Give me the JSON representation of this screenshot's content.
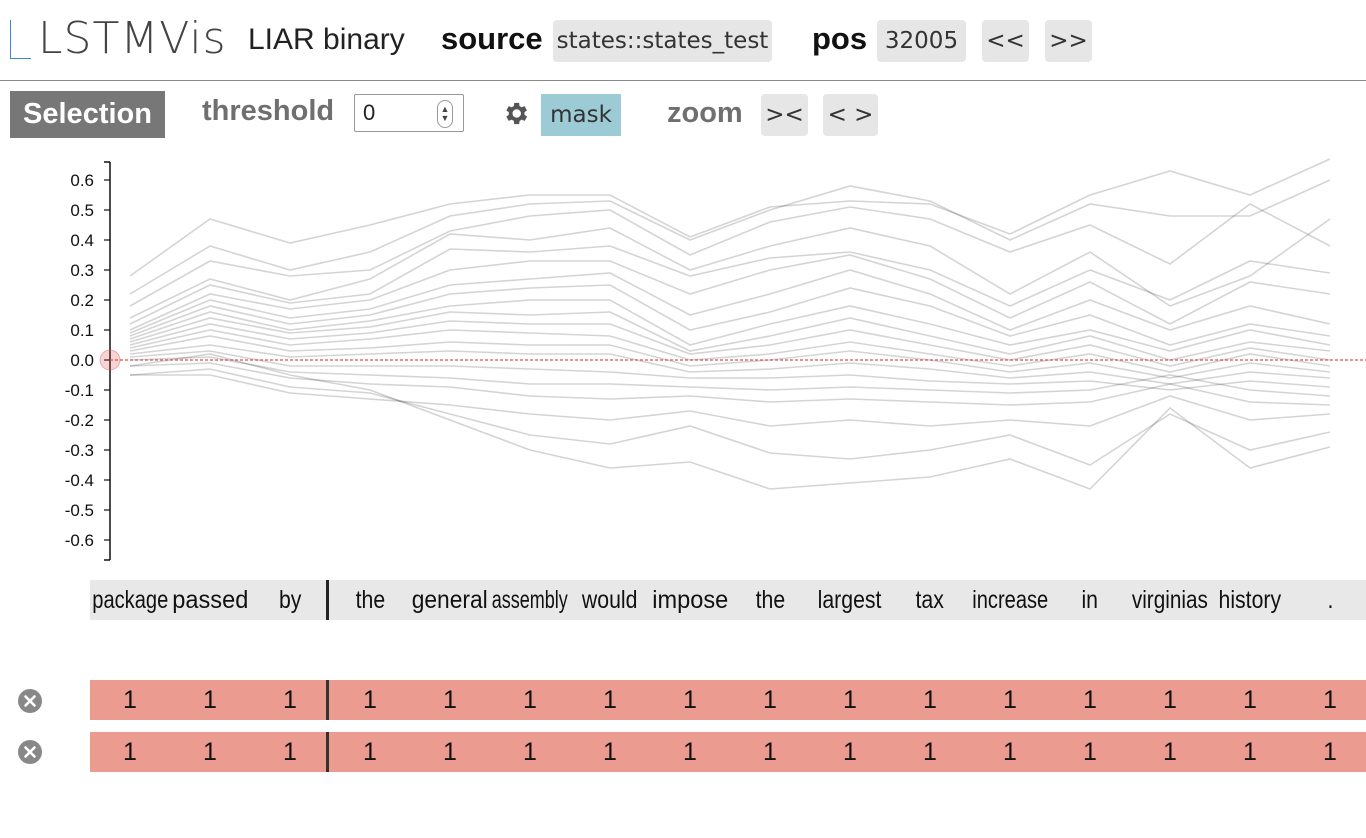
{
  "header": {
    "logo_text": "LSTMVis",
    "app_title": "LIAR binary",
    "source_label": "source",
    "source_value": "states::states_test",
    "pos_label": "pos",
    "pos_value": "32005",
    "prev_label": "<<",
    "next_label": ">>"
  },
  "toolbar": {
    "selection_label": "Selection",
    "threshold_label": "threshold",
    "threshold_value": "0",
    "settings_icon": "gear-icon",
    "mask_label": "mask",
    "zoom_label": "zoom",
    "zoom_in_label": "><",
    "zoom_out_label": "< >"
  },
  "chart_data": {
    "type": "line",
    "y_ticks": [
      "0.6",
      "0.5",
      "0.4",
      "0.3",
      "0.2",
      "0.1",
      "0.0",
      "-0.1",
      "-0.2",
      "-0.3",
      "-0.4",
      "-0.5",
      "-0.6"
    ],
    "ylim": [
      -0.6,
      0.6
    ],
    "threshold": 0.0,
    "line_color": "#000000",
    "threshold_color": "#d9534f",
    "series": [
      {
        "values": [
          0.28,
          0.47,
          0.39,
          0.45,
          0.52,
          0.55,
          0.55,
          0.41,
          0.51,
          0.53,
          0.52,
          0.42,
          0.55,
          0.63,
          0.55,
          0.67
        ]
      },
      {
        "values": [
          0.22,
          0.38,
          0.3,
          0.36,
          0.48,
          0.52,
          0.53,
          0.4,
          0.5,
          0.58,
          0.53,
          0.4,
          0.52,
          0.48,
          0.48,
          0.6
        ]
      },
      {
        "values": [
          0.18,
          0.33,
          0.28,
          0.3,
          0.43,
          0.48,
          0.5,
          0.35,
          0.46,
          0.51,
          0.47,
          0.36,
          0.45,
          0.32,
          0.52,
          0.38
        ]
      },
      {
        "values": [
          0.14,
          0.27,
          0.2,
          0.27,
          0.42,
          0.4,
          0.44,
          0.3,
          0.38,
          0.44,
          0.38,
          0.22,
          0.36,
          0.18,
          0.28,
          0.47
        ]
      },
      {
        "values": [
          0.12,
          0.25,
          0.19,
          0.22,
          0.37,
          0.36,
          0.38,
          0.28,
          0.34,
          0.36,
          0.3,
          0.18,
          0.3,
          0.2,
          0.33,
          0.29
        ]
      },
      {
        "values": [
          0.1,
          0.22,
          0.17,
          0.2,
          0.3,
          0.33,
          0.33,
          0.22,
          0.3,
          0.35,
          0.27,
          0.14,
          0.26,
          0.12,
          0.26,
          0.22
        ]
      },
      {
        "values": [
          0.09,
          0.2,
          0.14,
          0.17,
          0.25,
          0.27,
          0.29,
          0.15,
          0.22,
          0.3,
          0.22,
          0.1,
          0.2,
          0.1,
          0.18,
          0.12
        ]
      },
      {
        "values": [
          0.08,
          0.18,
          0.12,
          0.15,
          0.22,
          0.24,
          0.25,
          0.1,
          0.16,
          0.24,
          0.18,
          0.08,
          0.15,
          0.05,
          0.12,
          0.08
        ]
      },
      {
        "values": [
          0.07,
          0.16,
          0.1,
          0.13,
          0.18,
          0.2,
          0.2,
          0.05,
          0.12,
          0.18,
          0.12,
          0.05,
          0.1,
          0.03,
          0.1,
          0.05
        ]
      },
      {
        "values": [
          0.06,
          0.14,
          0.09,
          0.11,
          0.16,
          0.15,
          0.16,
          0.03,
          0.08,
          0.14,
          0.08,
          0.02,
          0.08,
          0.0,
          0.06,
          0.03
        ]
      },
      {
        "values": [
          0.05,
          0.12,
          0.07,
          0.09,
          0.13,
          0.12,
          0.12,
          0.02,
          0.05,
          0.1,
          0.05,
          0.0,
          0.05,
          -0.02,
          0.04,
          0.0
        ]
      },
      {
        "values": [
          0.04,
          0.1,
          0.05,
          0.07,
          0.1,
          0.09,
          0.08,
          0.0,
          0.02,
          0.06,
          0.02,
          -0.02,
          0.02,
          -0.04,
          0.02,
          -0.02
        ]
      },
      {
        "values": [
          0.03,
          0.08,
          0.03,
          0.04,
          0.06,
          0.05,
          0.05,
          -0.02,
          0.0,
          0.03,
          0.0,
          -0.04,
          -0.01,
          -0.06,
          -0.01,
          -0.04
        ]
      },
      {
        "values": [
          0.02,
          0.05,
          0.01,
          0.02,
          0.03,
          0.02,
          0.02,
          -0.04,
          -0.03,
          -0.01,
          -0.03,
          -0.06,
          -0.04,
          -0.08,
          -0.04,
          -0.06
        ]
      },
      {
        "values": [
          0.01,
          0.03,
          -0.02,
          -0.02,
          -0.02,
          -0.03,
          -0.04,
          -0.06,
          -0.06,
          -0.05,
          -0.07,
          -0.08,
          -0.07,
          -0.1,
          -0.07,
          -0.09
        ]
      },
      {
        "values": [
          0.0,
          0.01,
          -0.04,
          -0.05,
          -0.06,
          -0.08,
          -0.08,
          -0.09,
          -0.1,
          -0.09,
          -0.1,
          -0.11,
          -0.1,
          -0.05,
          -0.1,
          -0.12
        ]
      },
      {
        "values": [
          -0.02,
          -0.01,
          -0.06,
          -0.08,
          -0.09,
          -0.12,
          -0.13,
          -0.12,
          -0.14,
          -0.13,
          -0.14,
          -0.15,
          -0.14,
          -0.08,
          -0.14,
          -0.15
        ]
      },
      {
        "values": [
          -0.05,
          -0.05,
          -0.11,
          -0.13,
          -0.15,
          -0.18,
          -0.2,
          -0.17,
          -0.22,
          -0.2,
          -0.22,
          -0.2,
          -0.22,
          -0.12,
          -0.2,
          -0.18
        ]
      },
      {
        "values": [
          -0.05,
          -0.03,
          -0.09,
          -0.11,
          -0.18,
          -0.25,
          -0.28,
          -0.22,
          -0.31,
          -0.33,
          -0.3,
          -0.25,
          -0.35,
          -0.18,
          -0.3,
          -0.24
        ]
      },
      {
        "values": [
          -0.02,
          0.02,
          -0.05,
          -0.1,
          -0.2,
          -0.3,
          -0.36,
          -0.34,
          -0.43,
          -0.41,
          -0.39,
          -0.33,
          -0.43,
          -0.16,
          -0.36,
          -0.29
        ]
      }
    ]
  },
  "tokens": {
    "words": [
      "package",
      "passed",
      "by",
      "the",
      "general",
      "assembly",
      "would",
      "impose",
      "the",
      "largest",
      "tax",
      "increase",
      "in",
      "virginias",
      "history",
      "."
    ]
  },
  "rows": [
    {
      "remove_icon": "close-icon",
      "values": [
        "1",
        "1",
        "1",
        "1",
        "1",
        "1",
        "1",
        "1",
        "1",
        "1",
        "1",
        "1",
        "1",
        "1",
        "1",
        "1"
      ]
    },
    {
      "remove_icon": "close-icon",
      "values": [
        "1",
        "1",
        "1",
        "1",
        "1",
        "1",
        "1",
        "1",
        "1",
        "1",
        "1",
        "1",
        "1",
        "1",
        "1",
        "1"
      ]
    }
  ]
}
